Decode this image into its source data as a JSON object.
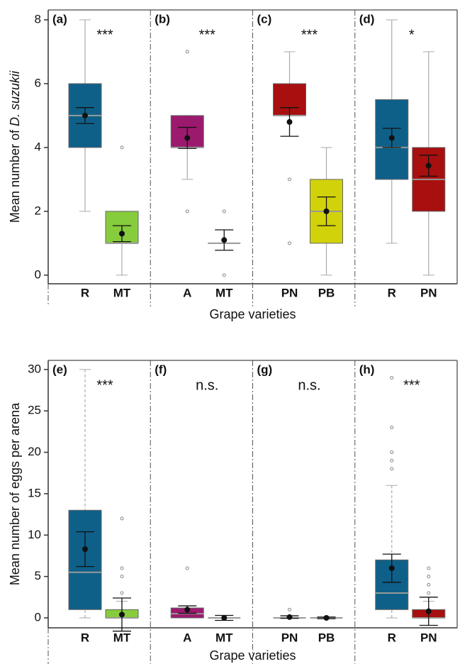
{
  "chart_data": [
    {
      "type": "box",
      "ylabel": "Mean number of",
      "ylabel_species": "D. suzukii",
      "xlabel": "Grape varieties",
      "ylim": [
        -0.27,
        8.31
      ],
      "yticks": [
        0,
        2,
        4,
        6,
        8
      ],
      "whisker_dashed": false,
      "panels": [
        {
          "label": "(a)",
          "sig": "***",
          "boxes": [
            {
              "name": "R",
              "color": "#0e6089",
              "min": 2,
              "q1": 4,
              "median": 5,
              "q3": 6,
              "max": 8,
              "mean": 5,
              "error": 0.25,
              "outliers": []
            },
            {
              "name": "MT",
              "color": "#86cc3c",
              "min": 0,
              "q1": 1,
              "median": 1,
              "q3": 2,
              "max": 2,
              "mean": 1.3,
              "error": 0.25,
              "outliers": [
                4
              ]
            }
          ]
        },
        {
          "label": "(b)",
          "sig": "***",
          "boxes": [
            {
              "name": "A",
              "color": "#9c1a6e",
              "min": 3,
              "q1": 4,
              "median": 4,
              "q3": 5,
              "max": 5,
              "mean": 4.3,
              "error": 0.33,
              "outliers": [
                7,
                2
              ]
            },
            {
              "name": "MT",
              "color": "#86cc3c",
              "min": 1,
              "q1": 1,
              "median": 1,
              "q3": 1,
              "max": 1,
              "mean": 1.1,
              "error": 0.32,
              "outliers": [
                2,
                0
              ]
            }
          ]
        },
        {
          "label": "(c)",
          "sig": "***",
          "boxes": [
            {
              "name": "PN",
              "color": "#a80f0f",
              "min": 5,
              "q1": 5,
              "median": 5,
              "q3": 6,
              "max": 7,
              "mean": 4.8,
              "error": 0.45,
              "outliers": [
                3,
                1
              ]
            },
            {
              "name": "PB",
              "color": "#d2d20a",
              "min": 0,
              "q1": 1,
              "median": 2,
              "q3": 3,
              "max": 4,
              "mean": 2,
              "error": 0.45,
              "outliers": []
            }
          ]
        },
        {
          "label": "(d)",
          "sig": "*",
          "boxes": [
            {
              "name": "R",
              "color": "#0e6089",
              "min": 1,
              "q1": 3,
              "median": 4,
              "q3": 5.5,
              "max": 8,
              "mean": 4.3,
              "error": 0.3,
              "outliers": []
            },
            {
              "name": "PN",
              "color": "#a80f0f",
              "min": 0,
              "q1": 2,
              "median": 3,
              "q3": 4,
              "max": 7,
              "mean": 3.43,
              "error": 0.33,
              "outliers": []
            }
          ]
        }
      ]
    },
    {
      "type": "box",
      "ylabel": "Mean number of eggs per arena",
      "xlabel": "Grape varieties",
      "ylim": [
        -1.2,
        31.1
      ],
      "yticks": [
        0,
        5,
        10,
        15,
        20,
        25,
        30
      ],
      "whisker_dashed": true,
      "panels": [
        {
          "label": "(e)",
          "sig": "***",
          "boxes": [
            {
              "name": "R",
              "color": "#0e6089",
              "min": 0,
              "q1": 1,
              "median": 5.5,
              "q3": 13,
              "max": 30,
              "mean": 8.3,
              "error": 2.1,
              "outliers": []
            },
            {
              "name": "MT",
              "color": "#86cc3c",
              "min": 0,
              "q1": 0,
              "median": 0,
              "q3": 1,
              "max": 2,
              "mean": 0.4,
              "error": 2,
              "outliers": [
                3,
                5,
                6,
                12
              ]
            }
          ]
        },
        {
          "label": "(f)",
          "sig": "n.s.",
          "boxes": [
            {
              "name": "A",
              "color": "#9c1a6e",
              "min": 0,
              "q1": 0,
              "median": 0.5,
              "q3": 1.2,
              "max": 1.2,
              "mean": 1,
              "error": 0.45,
              "outliers": [
                6
              ]
            },
            {
              "name": "MT",
              "color": "#86cc3c",
              "min": 0,
              "q1": 0,
              "median": 0,
              "q3": 0,
              "max": 0,
              "mean": 0,
              "error": 0.3,
              "outliers": []
            }
          ]
        },
        {
          "label": "(g)",
          "sig": "n.s.",
          "boxes": [
            {
              "name": "PN",
              "color": "#a80f0f",
              "min": 0,
              "q1": 0,
              "median": 0,
              "q3": 0,
              "max": 0,
              "mean": 0.1,
              "error": 0.15,
              "outliers": [
                1
              ]
            },
            {
              "name": "PB",
              "color": "#d2d20a",
              "min": 0,
              "q1": 0,
              "median": 0,
              "q3": 0,
              "max": 0,
              "mean": 0,
              "error": 0.1,
              "outliers": []
            }
          ]
        },
        {
          "label": "(h)",
          "sig": "***",
          "boxes": [
            {
              "name": "R",
              "color": "#0e6089",
              "min": 0,
              "q1": 1,
              "median": 3,
              "q3": 7,
              "max": 16,
              "mean": 6,
              "error": 1.7,
              "outliers": [
                18,
                19,
                20,
                23,
                29
              ]
            },
            {
              "name": "PN",
              "color": "#a80f0f",
              "min": 0,
              "q1": 0,
              "median": 0,
              "q3": 1,
              "max": 2,
              "mean": 0.8,
              "error": 1.7,
              "outliers": [
                3,
                4,
                5,
                6
              ]
            }
          ]
        }
      ]
    }
  ]
}
